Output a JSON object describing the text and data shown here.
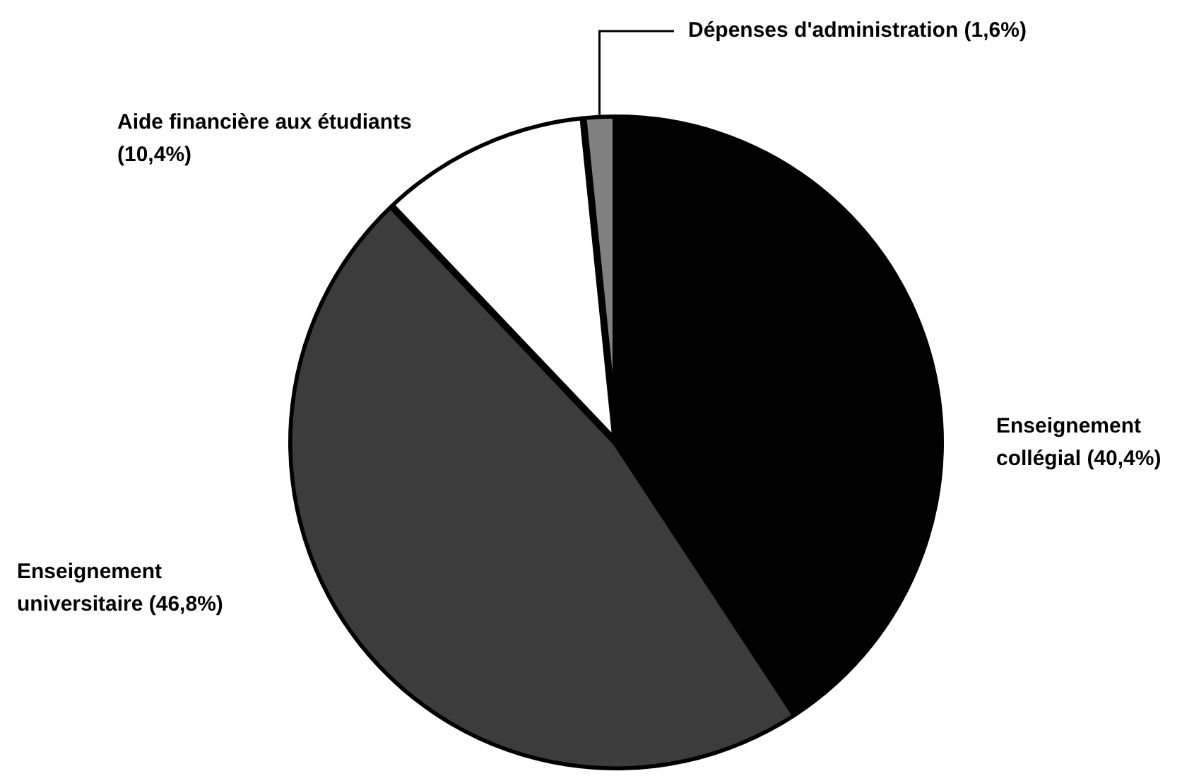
{
  "chart_data": {
    "type": "pie",
    "categories": [
      "Enseignement collégial",
      "Enseignement universitaire",
      "Aide financière aux étudiants",
      "Dépenses d'administration"
    ],
    "values": [
      40.4,
      46.8,
      10.4,
      1.6
    ],
    "colors": [
      "#000000",
      "#3c3c3c",
      "#ffffff",
      "#808080"
    ],
    "value_labels": [
      "(40,4%)",
      "(46,8%)",
      "(10,4%)",
      "(1,6%)"
    ]
  }
}
